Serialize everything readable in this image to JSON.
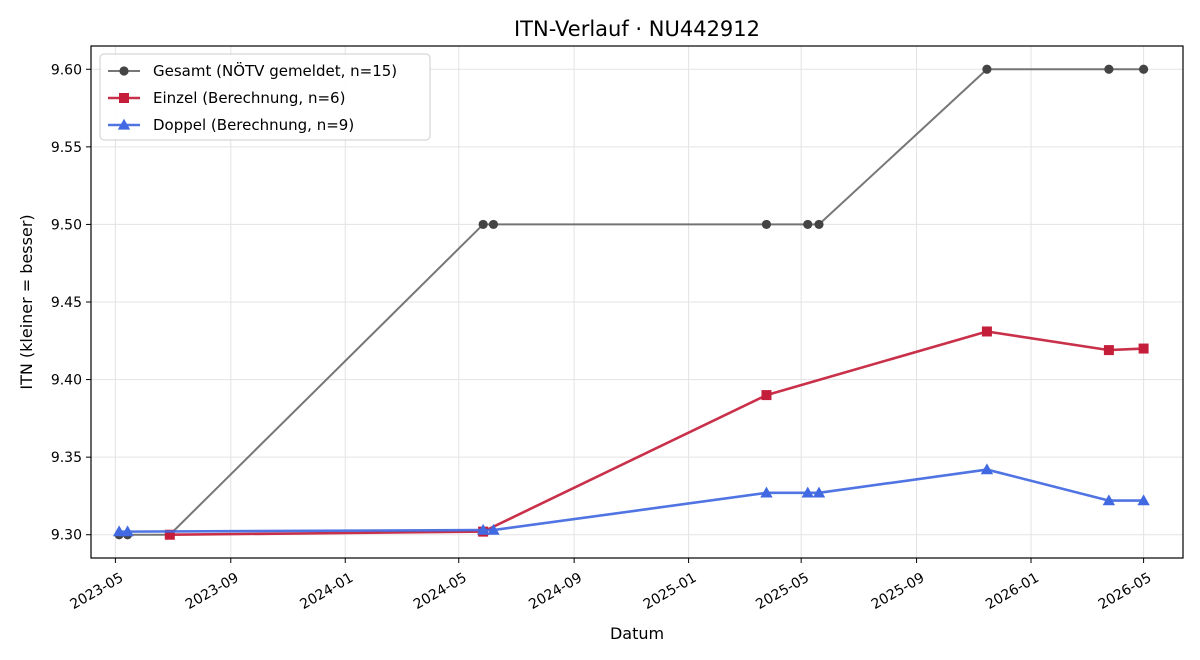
{
  "chart_data": {
    "type": "line",
    "title": "ITN-Verlauf · NU442912",
    "xlabel": "Datum",
    "ylabel": "ITN  (kleiner = besser)",
    "xlim": [
      "2023-04-05",
      "2026-06-12"
    ],
    "ylim": [
      9.285,
      9.615
    ],
    "x_ticks": [
      "2023-05-01",
      "2023-09-01",
      "2024-01-01",
      "2024-05-01",
      "2024-09-01",
      "2025-01-01",
      "2025-05-01",
      "2025-09-01",
      "2026-01-01",
      "2026-05-01"
    ],
    "x_tick_labels": [
      "2023-05",
      "2023-09",
      "2024-01",
      "2024-05",
      "2024-09",
      "2025-01",
      "2025-05",
      "2025-09",
      "2026-01",
      "2026-05"
    ],
    "y_ticks": [
      9.3,
      9.35,
      9.4,
      9.45,
      9.5,
      9.55,
      9.6
    ],
    "y_tick_labels": [
      "9.30",
      "9.35",
      "9.40",
      "9.45",
      "9.50",
      "9.55",
      "9.60"
    ],
    "grid": true,
    "legend_position": "top-left",
    "series": [
      {
        "name": "Gesamt (NÖTV gemeldet, n=15)",
        "color": "#555555",
        "marker": "circle",
        "x": [
          "2023-05-05",
          "2023-05-14",
          "2023-06-28",
          "2024-05-27",
          "2024-06-07",
          "2025-03-25",
          "2025-05-08",
          "2025-05-20",
          "2025-11-15",
          "2026-03-25",
          "2026-05-01"
        ],
        "y": [
          9.3,
          9.3,
          9.3,
          9.5,
          9.5,
          9.5,
          9.5,
          9.5,
          9.6,
          9.6,
          9.6
        ]
      },
      {
        "name": "Einzel (Berechnung, n=6)",
        "color": "#c41e3a",
        "marker": "square",
        "x": [
          "2023-06-28",
          "2024-05-27",
          "2025-03-25",
          "2025-11-15",
          "2026-03-25",
          "2026-05-01"
        ],
        "y": [
          9.3,
          9.302,
          9.39,
          9.431,
          9.419,
          9.42
        ]
      },
      {
        "name": "Doppel (Berechnung, n=9)",
        "color": "#4169e1",
        "marker": "triangle",
        "x": [
          "2023-05-05",
          "2023-05-14",
          "2024-05-27",
          "2024-06-07",
          "2025-03-25",
          "2025-05-08",
          "2025-05-20",
          "2025-11-15",
          "2026-03-25",
          "2026-05-01"
        ],
        "y": [
          9.302,
          9.302,
          9.303,
          9.303,
          9.327,
          9.327,
          9.327,
          9.342,
          9.322,
          9.322
        ]
      }
    ]
  }
}
